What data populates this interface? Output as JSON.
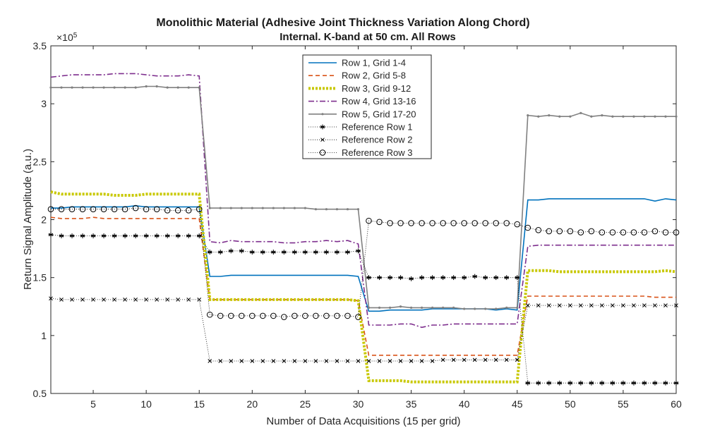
{
  "chart_data": {
    "type": "line",
    "title": "Monolithic Material (Adhesive Joint Thickness Variation Along Chord)",
    "subtitle": "Internal. K-band at 50 cm. All Rows",
    "xlabel": "Number of Data Acquisitions (15 per grid)",
    "ylabel": "Return Signal Amplitude (a.u.)",
    "y_exponent_label": "×10",
    "y_exponent": "5",
    "xlim": [
      1,
      60
    ],
    "ylim": [
      0.5,
      3.5
    ],
    "xticks": [
      5,
      10,
      15,
      20,
      25,
      30,
      35,
      40,
      45,
      50,
      55,
      60
    ],
    "yticks": [
      0.5,
      1,
      1.5,
      2,
      2.5,
      3,
      3.5
    ],
    "ytick_labels": [
      "0.5",
      "1",
      "1.5",
      "2",
      "2.5",
      "3",
      "3.5"
    ],
    "grid": false,
    "legend_position": "top-center",
    "series": [
      {
        "name": "Row 1, Grid 1-4",
        "color": "#0072BD",
        "style": "solid",
        "marker": "none",
        "x": [
          1,
          2,
          3,
          4,
          5,
          6,
          7,
          8,
          9,
          10,
          11,
          12,
          13,
          14,
          15,
          16,
          17,
          18,
          19,
          20,
          21,
          22,
          23,
          24,
          25,
          26,
          27,
          28,
          29,
          30,
          31,
          32,
          33,
          34,
          35,
          36,
          37,
          38,
          39,
          40,
          41,
          42,
          43,
          44,
          45,
          46,
          47,
          48,
          49,
          50,
          51,
          52,
          53,
          54,
          55,
          56,
          57,
          58,
          59,
          60
        ],
        "y": [
          2.1,
          2.1,
          2.11,
          2.11,
          2.11,
          2.11,
          2.11,
          2.11,
          2.12,
          2.11,
          2.11,
          2.11,
          2.11,
          2.11,
          2.11,
          1.51,
          1.51,
          1.52,
          1.52,
          1.52,
          1.52,
          1.52,
          1.52,
          1.52,
          1.52,
          1.52,
          1.52,
          1.52,
          1.52,
          1.51,
          1.21,
          1.21,
          1.22,
          1.22,
          1.22,
          1.22,
          1.23,
          1.23,
          1.23,
          1.23,
          1.23,
          1.23,
          1.22,
          1.23,
          1.22,
          2.17,
          2.17,
          2.18,
          2.18,
          2.18,
          2.18,
          2.18,
          2.18,
          2.18,
          2.18,
          2.18,
          2.18,
          2.16,
          2.18,
          2.17
        ]
      },
      {
        "name": "Row 2, Grid 5-8",
        "color": "#D95319",
        "style": "dashed",
        "marker": "none",
        "x": [
          1,
          2,
          3,
          4,
          5,
          6,
          7,
          8,
          9,
          10,
          11,
          12,
          13,
          14,
          15,
          16,
          17,
          18,
          19,
          20,
          21,
          22,
          23,
          24,
          25,
          26,
          27,
          28,
          29,
          30,
          31,
          32,
          33,
          34,
          35,
          36,
          37,
          38,
          39,
          40,
          41,
          42,
          43,
          44,
          45,
          46,
          47,
          48,
          49,
          50,
          51,
          52,
          53,
          54,
          55,
          56,
          57,
          58,
          59,
          60
        ],
        "y": [
          2.02,
          2.01,
          2.01,
          2.01,
          2.02,
          2.01,
          2.01,
          2.01,
          2.01,
          2.01,
          2.01,
          2.01,
          2.01,
          2.01,
          2.01,
          1.31,
          1.31,
          1.31,
          1.31,
          1.31,
          1.31,
          1.31,
          1.31,
          1.31,
          1.31,
          1.31,
          1.31,
          1.31,
          1.31,
          1.3,
          0.83,
          0.83,
          0.83,
          0.83,
          0.83,
          0.83,
          0.83,
          0.83,
          0.83,
          0.83,
          0.83,
          0.83,
          0.83,
          0.83,
          0.83,
          1.34,
          1.34,
          1.34,
          1.34,
          1.34,
          1.34,
          1.34,
          1.34,
          1.34,
          1.34,
          1.34,
          1.34,
          1.33,
          1.33,
          1.33
        ]
      },
      {
        "name": "Row 3, Grid 9-12",
        "color": "#C8C800",
        "style": "dotted-thick",
        "marker": "none",
        "x": [
          1,
          2,
          3,
          4,
          5,
          6,
          7,
          8,
          9,
          10,
          11,
          12,
          13,
          14,
          15,
          16,
          17,
          18,
          19,
          20,
          21,
          22,
          23,
          24,
          25,
          26,
          27,
          28,
          29,
          30,
          31,
          32,
          33,
          34,
          35,
          36,
          37,
          38,
          39,
          40,
          41,
          42,
          43,
          44,
          45,
          46,
          47,
          48,
          49,
          50,
          51,
          52,
          53,
          54,
          55,
          56,
          57,
          58,
          59,
          60
        ],
        "y": [
          2.24,
          2.22,
          2.22,
          2.22,
          2.22,
          2.22,
          2.21,
          2.21,
          2.21,
          2.22,
          2.22,
          2.22,
          2.22,
          2.22,
          2.22,
          1.31,
          1.31,
          1.31,
          1.31,
          1.31,
          1.31,
          1.31,
          1.31,
          1.31,
          1.31,
          1.31,
          1.31,
          1.31,
          1.31,
          1.3,
          0.61,
          0.61,
          0.61,
          0.61,
          0.6,
          0.6,
          0.6,
          0.6,
          0.6,
          0.6,
          0.6,
          0.6,
          0.6,
          0.6,
          0.6,
          1.56,
          1.56,
          1.56,
          1.55,
          1.55,
          1.55,
          1.55,
          1.55,
          1.55,
          1.55,
          1.55,
          1.55,
          1.55,
          1.56,
          1.55
        ]
      },
      {
        "name": "Row 4, Grid 13-16",
        "color": "#7E2F8E",
        "style": "dashdot",
        "marker": "none",
        "x": [
          1,
          2,
          3,
          4,
          5,
          6,
          7,
          8,
          9,
          10,
          11,
          12,
          13,
          14,
          15,
          16,
          17,
          18,
          19,
          20,
          21,
          22,
          23,
          24,
          25,
          26,
          27,
          28,
          29,
          30,
          31,
          32,
          33,
          34,
          35,
          36,
          37,
          38,
          39,
          40,
          41,
          42,
          43,
          44,
          45,
          46,
          47,
          48,
          49,
          50,
          51,
          52,
          53,
          54,
          55,
          56,
          57,
          58,
          59,
          60
        ],
        "y": [
          3.23,
          3.24,
          3.25,
          3.25,
          3.25,
          3.25,
          3.26,
          3.26,
          3.26,
          3.25,
          3.24,
          3.24,
          3.24,
          3.25,
          3.24,
          1.81,
          1.8,
          1.82,
          1.81,
          1.81,
          1.81,
          1.81,
          1.8,
          1.8,
          1.81,
          1.81,
          1.82,
          1.81,
          1.82,
          1.79,
          1.09,
          1.09,
          1.09,
          1.1,
          1.1,
          1.07,
          1.09,
          1.09,
          1.1,
          1.1,
          1.1,
          1.1,
          1.1,
          1.1,
          1.1,
          1.77,
          1.78,
          1.78,
          1.78,
          1.78,
          1.78,
          1.78,
          1.78,
          1.78,
          1.78,
          1.78,
          1.78,
          1.78,
          1.78,
          1.78
        ]
      },
      {
        "name": "Row 5, Grid 17-20",
        "color": "#808080",
        "style": "solid",
        "marker": "point",
        "x": [
          1,
          2,
          3,
          4,
          5,
          6,
          7,
          8,
          9,
          10,
          11,
          12,
          13,
          14,
          15,
          16,
          17,
          18,
          19,
          20,
          21,
          22,
          23,
          24,
          25,
          26,
          27,
          28,
          29,
          30,
          31,
          32,
          33,
          34,
          35,
          36,
          37,
          38,
          39,
          40,
          41,
          42,
          43,
          44,
          45,
          46,
          47,
          48,
          49,
          50,
          51,
          52,
          53,
          54,
          55,
          56,
          57,
          58,
          59,
          60
        ],
        "y": [
          3.14,
          3.14,
          3.14,
          3.14,
          3.14,
          3.14,
          3.14,
          3.14,
          3.14,
          3.15,
          3.15,
          3.14,
          3.14,
          3.14,
          3.14,
          2.1,
          2.1,
          2.1,
          2.1,
          2.1,
          2.1,
          2.1,
          2.1,
          2.1,
          2.1,
          2.09,
          2.09,
          2.09,
          2.09,
          2.09,
          1.24,
          1.24,
          1.24,
          1.25,
          1.24,
          1.24,
          1.24,
          1.24,
          1.24,
          1.23,
          1.23,
          1.23,
          1.23,
          1.24,
          1.24,
          2.9,
          2.89,
          2.9,
          2.89,
          2.89,
          2.92,
          2.89,
          2.9,
          2.89,
          2.89,
          2.89,
          2.89,
          2.89,
          2.89,
          2.89
        ]
      },
      {
        "name": "Reference Row 1",
        "color": "#000000",
        "style": "dotted",
        "marker": "asterisk",
        "x": [
          1,
          2,
          3,
          4,
          5,
          6,
          7,
          8,
          9,
          10,
          11,
          12,
          13,
          14,
          15,
          16,
          17,
          18,
          19,
          20,
          21,
          22,
          23,
          24,
          25,
          26,
          27,
          28,
          29,
          30,
          31,
          32,
          33,
          34,
          35,
          36,
          37,
          38,
          39,
          40,
          41,
          42,
          43,
          44,
          45,
          46,
          47,
          48,
          49,
          50,
          51,
          52,
          53,
          54,
          55,
          56,
          57,
          58,
          59,
          60
        ],
        "y": [
          1.87,
          1.86,
          1.86,
          1.86,
          1.86,
          1.86,
          1.86,
          1.86,
          1.86,
          1.86,
          1.86,
          1.86,
          1.86,
          1.86,
          1.86,
          1.72,
          1.72,
          1.73,
          1.73,
          1.72,
          1.72,
          1.72,
          1.72,
          1.72,
          1.72,
          1.72,
          1.72,
          1.72,
          1.72,
          1.73,
          1.5,
          1.5,
          1.5,
          1.5,
          1.49,
          1.5,
          1.5,
          1.5,
          1.5,
          1.5,
          1.51,
          1.5,
          1.5,
          1.5,
          1.5,
          0.59,
          0.59,
          0.59,
          0.59,
          0.59,
          0.59,
          0.59,
          0.59,
          0.59,
          0.59,
          0.59,
          0.59,
          0.59,
          0.59,
          0.59
        ]
      },
      {
        "name": "Reference Row 2",
        "color": "#000000",
        "style": "dotted",
        "marker": "x",
        "x": [
          1,
          2,
          3,
          4,
          5,
          6,
          7,
          8,
          9,
          10,
          11,
          12,
          13,
          14,
          15,
          16,
          17,
          18,
          19,
          20,
          21,
          22,
          23,
          24,
          25,
          26,
          27,
          28,
          29,
          30,
          31,
          32,
          33,
          34,
          35,
          36,
          37,
          38,
          39,
          40,
          41,
          42,
          43,
          44,
          45,
          46,
          47,
          48,
          49,
          50,
          51,
          52,
          53,
          54,
          55,
          56,
          57,
          58,
          59,
          60
        ],
        "y": [
          1.32,
          1.31,
          1.31,
          1.31,
          1.31,
          1.31,
          1.31,
          1.31,
          1.31,
          1.31,
          1.31,
          1.31,
          1.31,
          1.31,
          1.31,
          0.78,
          0.78,
          0.78,
          0.78,
          0.78,
          0.78,
          0.78,
          0.78,
          0.78,
          0.78,
          0.78,
          0.78,
          0.78,
          0.78,
          0.78,
          0.78,
          0.78,
          0.78,
          0.78,
          0.78,
          0.78,
          0.78,
          0.79,
          0.79,
          0.79,
          0.79,
          0.79,
          0.79,
          0.79,
          0.79,
          1.26,
          1.26,
          1.26,
          1.26,
          1.26,
          1.26,
          1.26,
          1.26,
          1.26,
          1.26,
          1.26,
          1.26,
          1.26,
          1.26,
          1.26
        ]
      },
      {
        "name": "Reference Row 3",
        "color": "#000000",
        "style": "dotted",
        "marker": "circle",
        "x": [
          1,
          2,
          3,
          4,
          5,
          6,
          7,
          8,
          9,
          10,
          11,
          12,
          13,
          14,
          15,
          16,
          17,
          18,
          19,
          20,
          21,
          22,
          23,
          24,
          25,
          26,
          27,
          28,
          29,
          30,
          31,
          32,
          33,
          34,
          35,
          36,
          37,
          38,
          39,
          40,
          41,
          42,
          43,
          44,
          45,
          46,
          47,
          48,
          49,
          50,
          51,
          52,
          53,
          54,
          55,
          56,
          57,
          58,
          59,
          60
        ],
        "y": [
          2.09,
          2.09,
          2.09,
          2.09,
          2.09,
          2.09,
          2.09,
          2.09,
          2.1,
          2.09,
          2.09,
          2.08,
          2.08,
          2.08,
          2.09,
          1.18,
          1.17,
          1.17,
          1.17,
          1.17,
          1.17,
          1.17,
          1.16,
          1.17,
          1.17,
          1.17,
          1.17,
          1.17,
          1.17,
          1.16,
          1.99,
          1.98,
          1.97,
          1.97,
          1.97,
          1.97,
          1.97,
          1.97,
          1.97,
          1.97,
          1.97,
          1.97,
          1.97,
          1.97,
          1.96,
          1.93,
          1.91,
          1.9,
          1.9,
          1.9,
          1.89,
          1.9,
          1.89,
          1.89,
          1.89,
          1.89,
          1.89,
          1.9,
          1.89,
          1.89
        ]
      }
    ]
  }
}
